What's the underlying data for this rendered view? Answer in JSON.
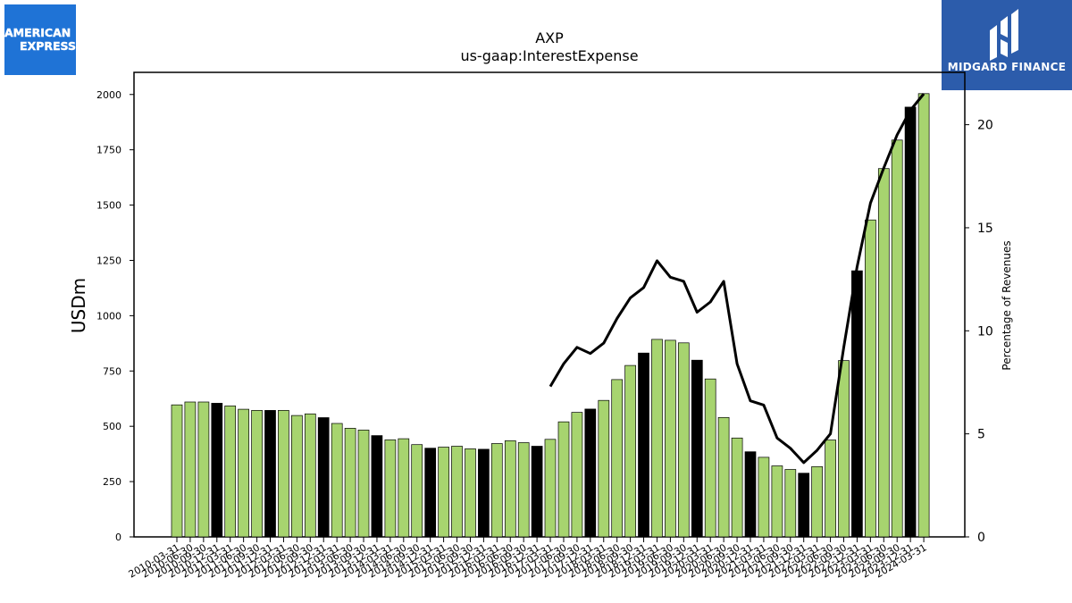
{
  "logos": {
    "left": {
      "line1": "AMERICAN",
      "line2": "EXPRESS"
    },
    "right": {
      "text": "MIDGARD FINANCE"
    }
  },
  "chart_data": {
    "type": "bar",
    "title": "AXP",
    "subtitle": "us-gaap:InterestExpense",
    "ylabel": "USDm",
    "y2label": "Percentage of Revenues",
    "ylim": [
      0,
      2100
    ],
    "y2lim": [
      0,
      22.54
    ],
    "yticks": [
      0,
      250,
      500,
      750,
      1000,
      1250,
      1500,
      1750,
      2000
    ],
    "y2ticks": [
      0,
      5,
      10,
      15,
      20
    ],
    "colors": {
      "bar": "#a7d46f",
      "bar_q4": "#000000",
      "line": "#000000"
    },
    "categories": [
      "2010-03-31",
      "2010-06-30",
      "2010-09-30",
      "2010-12-31",
      "2011-03-31",
      "2011-06-30",
      "2011-09-30",
      "2011-12-31",
      "2012-03-31",
      "2012-06-30",
      "2012-09-30",
      "2012-12-31",
      "2013-03-31",
      "2013-06-30",
      "2013-09-30",
      "2013-12-31",
      "2014-03-31",
      "2014-06-30",
      "2014-09-30",
      "2014-12-31",
      "2015-03-31",
      "2015-06-30",
      "2015-09-30",
      "2015-12-31",
      "2016-03-31",
      "2016-06-30",
      "2016-09-30",
      "2016-12-31",
      "2017-03-31",
      "2017-06-30",
      "2017-09-30",
      "2017-12-31",
      "2018-03-31",
      "2018-06-30",
      "2018-09-30",
      "2018-12-31",
      "2019-03-31",
      "2019-06-30",
      "2019-09-30",
      "2019-12-31",
      "2020-03-31",
      "2020-06-30",
      "2020-09-30",
      "2020-12-31",
      "2021-03-31",
      "2021-06-30",
      "2021-09-30",
      "2021-12-31",
      "2022-03-31",
      "2022-06-30",
      "2022-09-30",
      "2022-12-31",
      "2023-03-31",
      "2023-06-30",
      "2023-09-30",
      "2023-12-31",
      "2024-03-31"
    ],
    "series": [
      {
        "kind": "bar",
        "values": [
          597,
          610,
          610,
          604,
          592,
          577,
          572,
          572,
          572,
          549,
          556,
          539,
          513,
          491,
          483,
          458,
          439,
          444,
          417,
          401,
          406,
          410,
          398,
          396,
          422,
          435,
          426,
          410,
          441,
          520,
          563,
          578,
          617,
          711,
          775,
          831,
          893,
          889,
          877,
          799,
          714,
          540,
          447,
          385,
          360,
          321,
          305,
          288,
          318,
          438,
          797,
          1203,
          1433,
          1665,
          1794,
          1943,
          2004
        ]
      },
      {
        "kind": "line",
        "values": [
          null,
          null,
          null,
          null,
          null,
          null,
          null,
          null,
          null,
          null,
          null,
          null,
          null,
          null,
          null,
          null,
          null,
          null,
          null,
          null,
          null,
          null,
          null,
          null,
          null,
          null,
          null,
          null,
          7.3,
          8.4,
          9.2,
          8.9,
          9.4,
          10.6,
          11.6,
          12.1,
          13.4,
          12.6,
          12.4,
          10.9,
          11.4,
          12.4,
          8.4,
          6.6,
          6.4,
          4.8,
          4.3,
          3.6,
          4.2,
          5.0,
          9.2,
          13.1,
          16.2,
          17.9,
          19.5,
          20.7,
          21.5
        ]
      }
    ]
  }
}
